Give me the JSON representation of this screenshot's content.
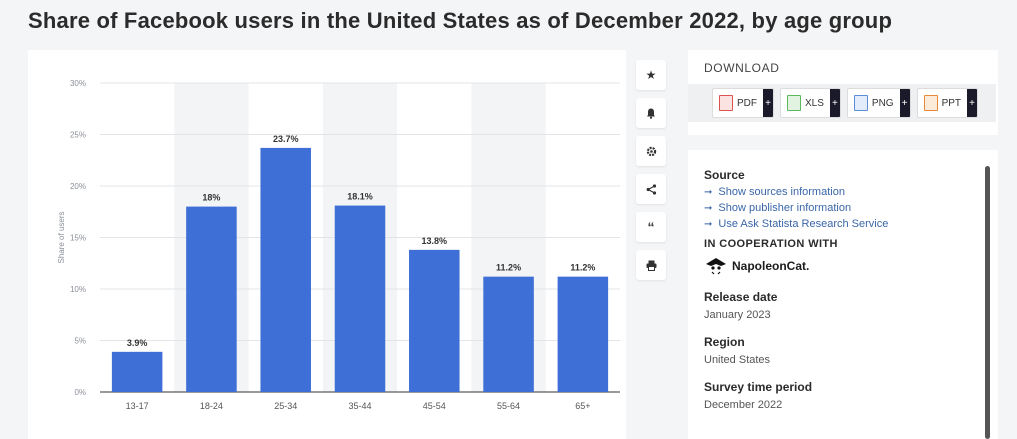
{
  "page": {
    "title": "Share of Facebook users in the United States as of December 2022, by age group"
  },
  "chart_data": {
    "type": "bar",
    "title": "Share of Facebook users in the United States as of December 2022, by age group",
    "categories": [
      "13-17",
      "18-24",
      "25-34",
      "35-44",
      "45-54",
      "55-64",
      "65+"
    ],
    "values": [
      3.9,
      18,
      23.7,
      18.1,
      13.8,
      11.2,
      11.2
    ],
    "value_labels": [
      "3.9%",
      "18%",
      "23.7%",
      "18.1%",
      "13.8%",
      "11.2%",
      "11.2%"
    ],
    "ylabel": "Share of users",
    "xlabel": "",
    "ylim": [
      0,
      30
    ],
    "yticks": [
      0,
      5,
      10,
      15,
      20,
      25,
      30
    ],
    "ytick_labels": [
      "0%",
      "5%",
      "10%",
      "15%",
      "20%",
      "25%",
      "30%"
    ],
    "bar_color": "#3d6fd6",
    "alt_band_color": "#f3f4f6"
  },
  "actions": [
    {
      "name": "favorite-icon",
      "label": "★"
    },
    {
      "name": "notification-icon",
      "label": "bell"
    },
    {
      "name": "settings-icon",
      "label": "gear"
    },
    {
      "name": "share-icon",
      "label": "share"
    },
    {
      "name": "cite-icon",
      "label": "“"
    },
    {
      "name": "print-icon",
      "label": "print"
    }
  ],
  "download": {
    "label": "DOWNLOAD",
    "buttons": [
      {
        "name": "pdf",
        "label": "PDF",
        "color": "#d9534f"
      },
      {
        "name": "xls",
        "label": "XLS",
        "color": "#5cb85c"
      },
      {
        "name": "png",
        "label": "PNG",
        "color": "#5b8ed6"
      },
      {
        "name": "ppt",
        "label": "PPT",
        "color": "#e8893a"
      }
    ],
    "plus": "+"
  },
  "source": {
    "heading": "Source",
    "links": [
      "Show sources information",
      "Show publisher information",
      "Use Ask Statista Research Service"
    ],
    "arrow": "➞",
    "coop_heading": "IN COOPERATION WITH",
    "partner": "NapoleonCat.",
    "release_label": "Release date",
    "release_value": "January 2023",
    "region_label": "Region",
    "region_value": "United States",
    "survey_label": "Survey time period",
    "survey_value": "December 2022"
  }
}
